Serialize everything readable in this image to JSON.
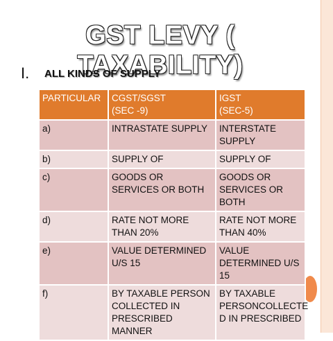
{
  "slide": {
    "title": "GST LEVY ( TAXABILITY)",
    "section_numeral": "I.",
    "section_heading": "ALL KINDS OF SUPPLY"
  },
  "table": {
    "headers": [
      {
        "line1": "PARTICULAR",
        "line2": ""
      },
      {
        "line1": "CGST/SGST",
        "line2": "(SEC -9)"
      },
      {
        "line1": "IGST",
        "line2": "(SEC-5)"
      }
    ],
    "rows": [
      {
        "label": "a)",
        "cgst_sgst": "INTRASTATE SUPPLY",
        "igst": "INTERSTATE SUPPLY"
      },
      {
        "label": "b)",
        "cgst_sgst": "SUPPLY OF",
        "igst": "SUPPLY OF"
      },
      {
        "label": "c)",
        "cgst_sgst": "GOODS OR SERVICES OR BOTH",
        "igst": " GOODS OR SERVICES OR BOTH"
      },
      {
        "label": "d)",
        "cgst_sgst": "RATE NOT MORE THAN 20%",
        "igst": "RATE NOT MORE THAN 40%"
      },
      {
        "label": "e)",
        "cgst_sgst": "VALUE DETERMINED U/S 15",
        "igst": "VALUE DETERMINED U/S 15"
      },
      {
        "label": "f)",
        "cgst_sgst": "BY  TAXABLE PERSON COLLECTED IN PRESCRIBED MANNER",
        "igst": "BY  TAXABLE PERSONCOLLECTE D IN PRESCRIBED"
      }
    ]
  },
  "colors": {
    "header_bg": "#e07b2c",
    "row_bg_dark": "#e3c2c2",
    "row_bg_light": "#eedcdc",
    "accent_circle": "#f08a4b"
  }
}
